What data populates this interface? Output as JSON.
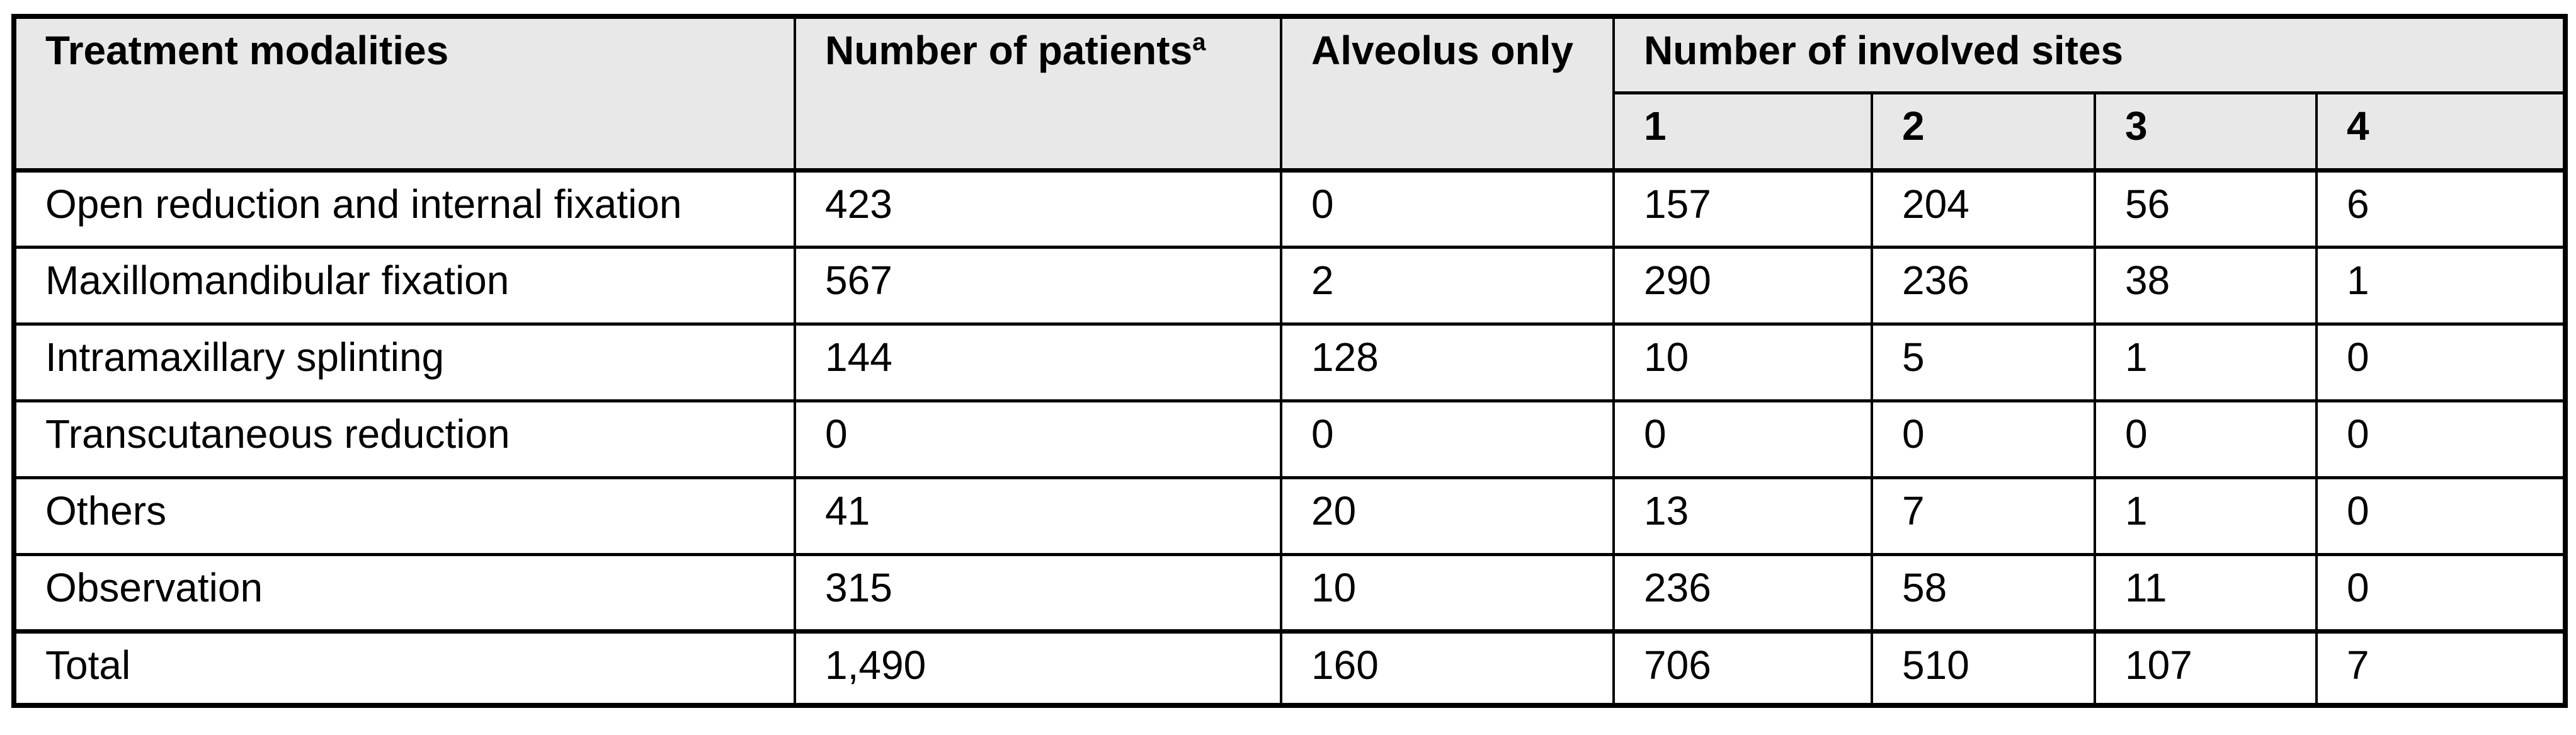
{
  "colors": {
    "header_bg": "#e8e8e8",
    "border": "#000000",
    "body_bg": "#ffffff"
  },
  "header": {
    "treatment_modalities": "Treatment modalities",
    "number_of_patients": "Number of patients",
    "number_of_patients_footnote": "a",
    "alveolus_only": "Alveolus only",
    "involved_sites_group": "Number of involved sites",
    "involved_sites": [
      "1",
      "2",
      "3",
      "4"
    ]
  },
  "rows": [
    {
      "label": "Open reduction and internal fixation",
      "patients": "423",
      "alveolus_only": "0",
      "sites": [
        "157",
        "204",
        "56",
        "6"
      ]
    },
    {
      "label": "Maxillomandibular fixation",
      "patients": "567",
      "alveolus_only": "2",
      "sites": [
        "290",
        "236",
        "38",
        "1"
      ]
    },
    {
      "label": "Intramaxillary splinting",
      "patients": "144",
      "alveolus_only": "128",
      "sites": [
        "10",
        "5",
        "1",
        "0"
      ]
    },
    {
      "label": "Transcutaneous reduction",
      "patients": "0",
      "alveolus_only": "0",
      "sites": [
        "0",
        "0",
        "0",
        "0"
      ]
    },
    {
      "label": "Others",
      "patients": "41",
      "alveolus_only": "20",
      "sites": [
        "13",
        "7",
        "1",
        "0"
      ]
    },
    {
      "label": "Observation",
      "patients": "315",
      "alveolus_only": "10",
      "sites": [
        "236",
        "58",
        "11",
        "0"
      ]
    }
  ],
  "total_row": {
    "label": "Total",
    "patients": "1,490",
    "alveolus_only": "160",
    "sites": [
      "706",
      "510",
      "107",
      "7"
    ]
  }
}
